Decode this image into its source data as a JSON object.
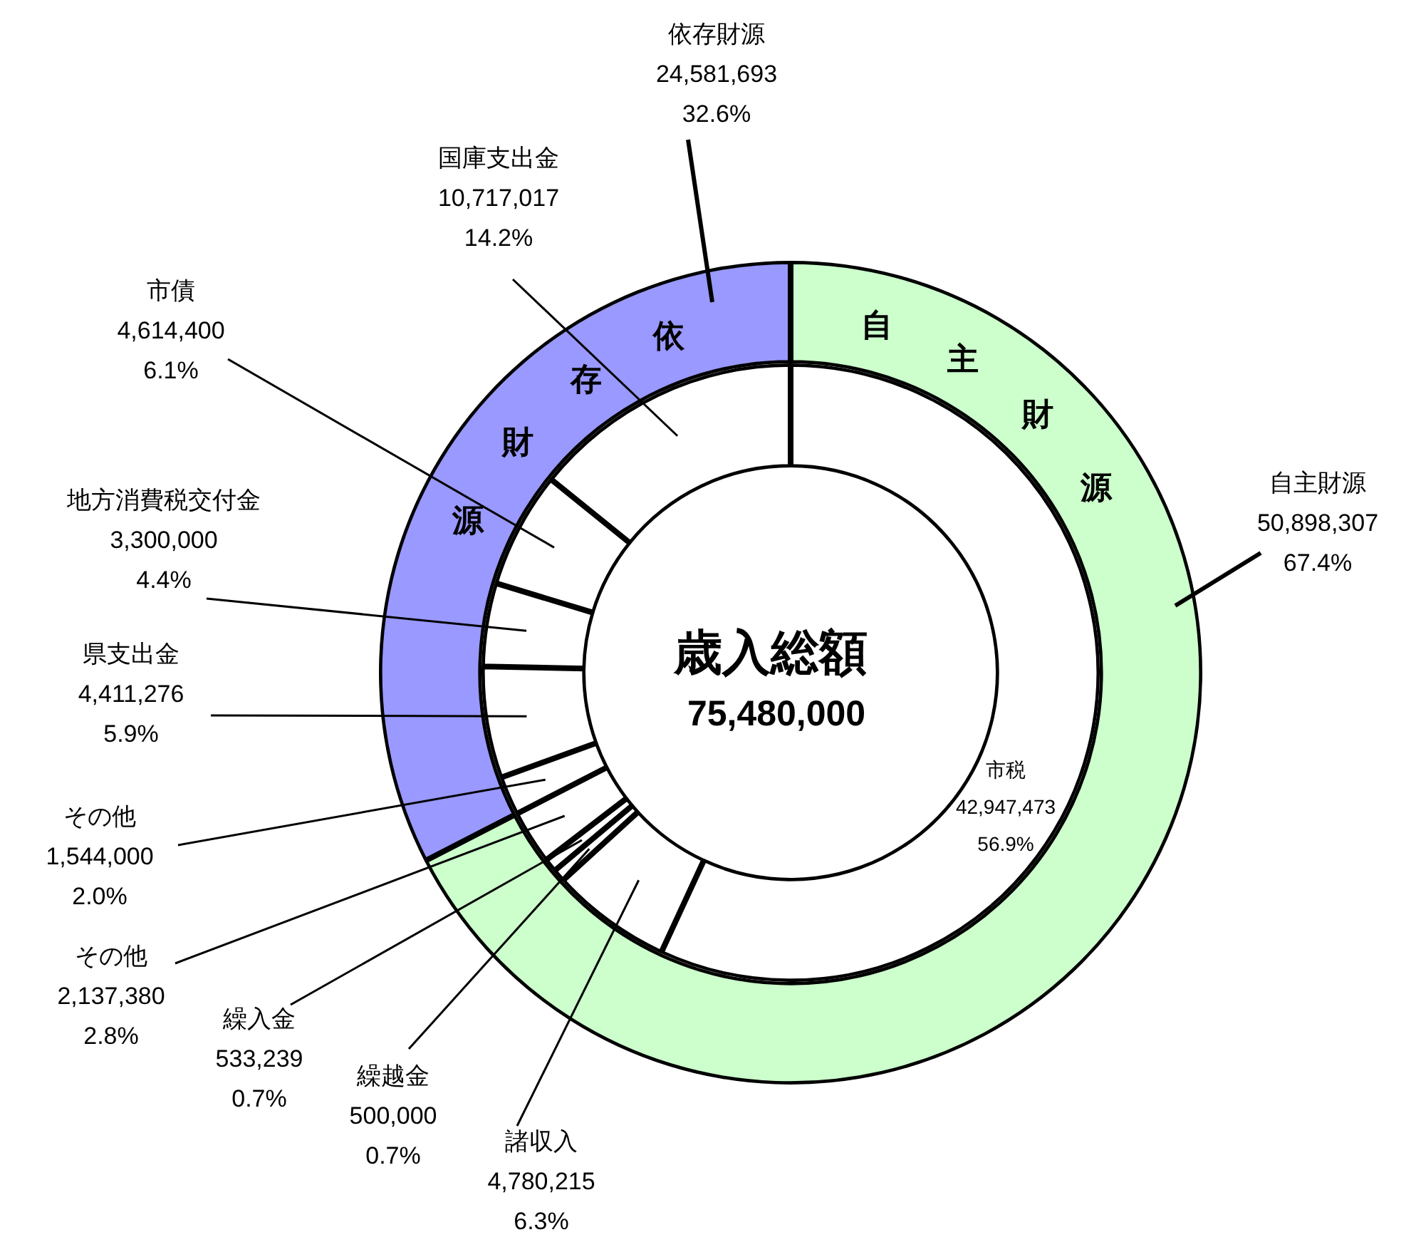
{
  "chart_data": [
    {
      "type": "donut",
      "title": "歳入総額",
      "subtitle": "75,480,000",
      "legend": false,
      "annotations": [
        "自",
        "主",
        "財",
        "源",
        "依",
        "存",
        "財",
        "源"
      ],
      "categories": [
        "自主財源",
        "依存財源"
      ],
      "values": [
        50898307,
        24581693
      ],
      "colors": [
        "#ccffcc",
        "#9999ff"
      ],
      "value_labels": [
        "50,898,307\n67.4%",
        "24,581,693\n32.6%"
      ]
    },
    {
      "type": "donut",
      "legend": false,
      "categories": [
        "市税",
        "諸収入",
        "繰越金",
        "繰入金",
        "その他",
        "その他",
        "県支出金",
        "地方消費税交付金",
        "市債",
        "国庫支出金"
      ],
      "values": [
        42947473,
        4780215,
        500000,
        533239,
        2137380,
        1544000,
        4411276,
        3300000,
        4614400,
        10717017
      ],
      "colors": [
        "#ffffff",
        "#ffffff",
        "#ffffff",
        "#ffffff",
        "#ffffff",
        "#ffffff",
        "#ffffff",
        "#ffffff",
        "#ffffff",
        "#ffffff"
      ],
      "value_labels": [
        "42,947,473\n56.9%",
        "4,780,215\n6.3%",
        "500,000\n0.7%",
        "533,239\n0.7%",
        "2,137,380\n2.8%",
        "1,544,000\n2.0%",
        "4,411,276\n5.9%",
        "3,300,000\n4.4%",
        "4,614,400\n6.1%",
        "10,717,017\n14.2%"
      ]
    }
  ]
}
